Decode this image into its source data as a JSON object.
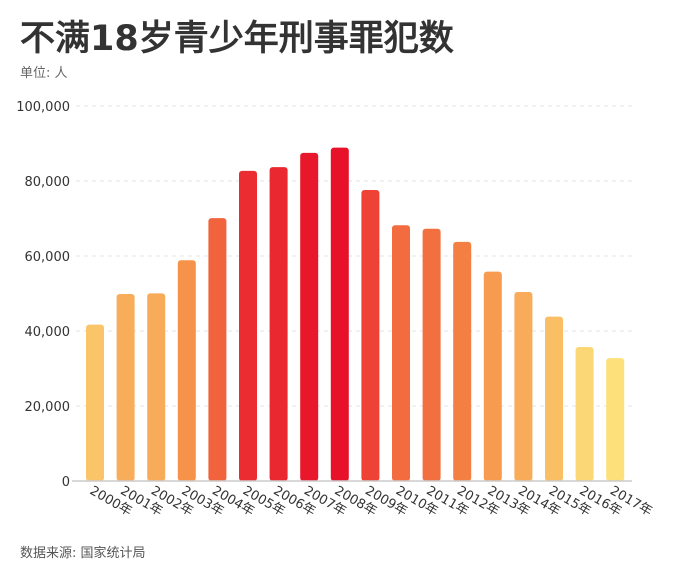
{
  "title": "不满18岁青少年刑事罪犯数",
  "subtitle": "单位: 人",
  "source": "数据来源: 国家统计局",
  "chart_data": {
    "type": "bar",
    "categories": [
      "2000年",
      "2001年",
      "2002年",
      "2003年",
      "2004年",
      "2005年",
      "2006年",
      "2007年",
      "2008年",
      "2009年",
      "2010年",
      "2011年",
      "2012年",
      "2013年",
      "2014年",
      "2015年",
      "2016年",
      "2017年"
    ],
    "values": [
      41709,
      49883,
      50030,
      58870,
      70086,
      82692,
      83697,
      87506,
      88891,
      77604,
      68193,
      67280,
      63782,
      55817,
      50415,
      43839,
      35743,
      32778
    ],
    "ylim": [
      0,
      100000
    ],
    "yticks": [
      "0",
      "20,000",
      "40,000",
      "60,000",
      "80,000",
      "100,000"
    ],
    "ytick_values": [
      0,
      20000,
      40000,
      60000,
      80000,
      100000
    ],
    "grid": true,
    "color_low": "#fde07a",
    "color_high": "#e8112a"
  }
}
